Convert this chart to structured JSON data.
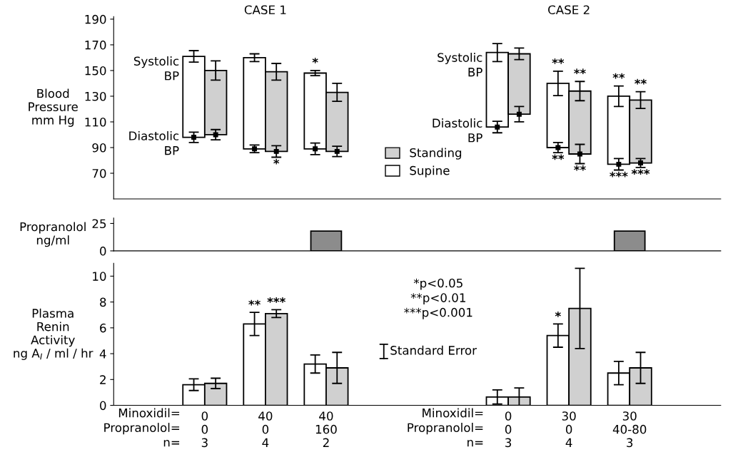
{
  "chart_data": [
    {
      "type": "bar",
      "ylabel": "Blood\nPressure\nmm Hg",
      "categories": [
        null,
        null,
        null,
        null,
        null,
        null,
        null,
        null,
        null,
        null
      ],
      "ylim": [
        50,
        192
      ],
      "yticks": [
        70,
        90,
        110,
        130,
        150,
        170,
        190
      ],
      "tick_labels": "y",
      "legend": "bottom",
      "marker": "square",
      "annotations": [
        "CASE 1",
        "CASE 2",
        "Systolic\nBP",
        "Diastolic\nBP",
        "Systolic\nBP",
        "Diastolic\nBP"
      ],
      "series": [
        {
          "name": "Supine",
          "type": "bar",
          "color": "#ffffff",
          "base": [
            null,
            98,
            89,
            89,
            null,
            null,
            106,
            90,
            77,
            null
          ],
          "values": [
            null,
            63,
            71,
            59,
            null,
            null,
            58,
            50,
            53,
            null
          ],
          "errors": [
            null,
            4.5,
            3,
            2,
            null,
            null,
            7,
            9.5,
            8,
            null
          ],
          "value_labels": [
            null,
            null,
            null,
            "*",
            null,
            null,
            null,
            "**",
            "**",
            null
          ]
        },
        {
          "name": "Standing",
          "type": "bar",
          "color": "#d0d0d0",
          "base": [
            null,
            100,
            87,
            87,
            null,
            null,
            116,
            85,
            78,
            null
          ],
          "values": [
            null,
            50,
            62,
            46,
            null,
            null,
            47,
            49,
            49,
            null
          ],
          "errors": [
            null,
            7.5,
            6.5,
            7,
            null,
            null,
            4.5,
            7.5,
            6.5,
            null
          ],
          "value_labels": [
            null,
            null,
            null,
            null,
            null,
            null,
            null,
            "**",
            "**",
            null
          ]
        },
        {
          "type": "scatter",
          "color": "#000000",
          "values": [
            null,
            98,
            89,
            89,
            null,
            null,
            106,
            90,
            77,
            null
          ],
          "errors": [
            null,
            4,
            3,
            4.5,
            null,
            null,
            4.5,
            4,
            4.5,
            null
          ],
          "value_labels": [
            null,
            null,
            null,
            null,
            null,
            null,
            null,
            "**",
            "***",
            null
          ]
        },
        {
          "type": "scatter",
          "color": "#000000",
          "values": [
            null,
            100,
            87,
            87,
            null,
            null,
            116,
            85,
            78,
            null
          ],
          "errors": [
            null,
            4,
            4.5,
            4,
            null,
            null,
            6,
            7.5,
            3.5,
            null
          ],
          "value_labels": [
            null,
            null,
            "*",
            null,
            null,
            null,
            null,
            "**",
            "***",
            null
          ]
        }
      ]
    },
    {
      "type": "bar",
      "ylabel": "Propranolol\nng/ml",
      "categories": [
        null,
        null,
        null,
        null,
        null,
        null,
        null,
        null,
        null,
        null
      ],
      "ylim": [
        0,
        30
      ],
      "yticks": [
        0,
        25
      ],
      "tick_labels": "y",
      "series": [
        {
          "color": "#8c8c8c",
          "values": [
            null,
            null,
            null,
            18,
            null,
            null,
            null,
            null,
            18,
            null
          ]
        }
      ]
    },
    {
      "type": "bar",
      "ylabel": "Plasma\nRenin\nActivity\nng A$_{I}$ / ml / hr",
      "categories": [
        null,
        "0\n0\n3",
        "40\n0\n4",
        "40\n160\n2",
        null,
        null,
        "0\n0\n3",
        "30\n0\n4",
        "30\n40-80\n3",
        null
      ],
      "ylim": [
        0,
        11
      ],
      "yticks": [
        0,
        2,
        4,
        6,
        8,
        10
      ],
      "annotations": [
        "Minoxidil=\nPropranolol=\nn=",
        "Minoxidil=\nPropranolol=\nn=",
        "*p<0.05\n**p<0.01\n***p<0.001",
        "Standard Error"
      ],
      "series": [
        {
          "type": "bar",
          "color": "#ffffff",
          "values": [
            null,
            1.6,
            6.3,
            3.2,
            null,
            null,
            0.65,
            5.4,
            2.5,
            null
          ],
          "errors": [
            null,
            0.45,
            0.9,
            0.7,
            null,
            null,
            0.55,
            0.9,
            0.9,
            null
          ],
          "value_labels": [
            null,
            null,
            "**",
            null,
            null,
            null,
            null,
            "*",
            null,
            null
          ]
        },
        {
          "type": "bar",
          "color": "#d0d0d0",
          "values": [
            null,
            1.7,
            7.1,
            2.9,
            null,
            null,
            0.65,
            7.5,
            2.9,
            null
          ],
          "errors": [
            null,
            0.4,
            0.3,
            1.2,
            null,
            null,
            0.7,
            3.1,
            1.2,
            null
          ],
          "value_labels": [
            null,
            null,
            "***",
            null,
            null,
            null,
            null,
            null,
            null,
            null
          ]
        }
      ]
    }
  ]
}
